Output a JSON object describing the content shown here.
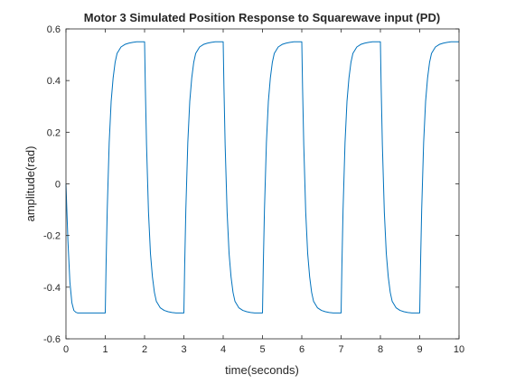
{
  "chart_data": {
    "type": "line",
    "title": "Motor 3 Simulated Position Response to Squarewave input (PD)",
    "xlabel": "time(seconds)",
    "ylabel": "amplitude(rad)",
    "xlim": [
      0,
      10
    ],
    "ylim": [
      -0.6,
      0.6
    ],
    "xticks": [
      0,
      1,
      2,
      3,
      4,
      5,
      6,
      7,
      8,
      9,
      10
    ],
    "yticks": [
      -0.6,
      -0.4,
      -0.2,
      0,
      0.2,
      0.4,
      0.6
    ],
    "ytick_labels": [
      "-0.6",
      "-0.4",
      "-0.2",
      "0",
      "0.2",
      "0.4",
      "0.6"
    ],
    "grid": false,
    "line_color": "#0072BD",
    "series": [
      {
        "values_note": "",
        "x": [
          0,
          0.02,
          0.05,
          0.1,
          0.15,
          0.2,
          0.25,
          0.3,
          0.4,
          0.5,
          0.7,
          1.0,
          1.0,
          1.02,
          1.05,
          1.1,
          1.15,
          1.2,
          1.25,
          1.3,
          1.4,
          1.5,
          1.6,
          1.7,
          1.8,
          1.9,
          2.0,
          2.0,
          2.02,
          2.05,
          2.1,
          2.15,
          2.2,
          2.25,
          2.3,
          2.4,
          2.5,
          2.6,
          2.7,
          2.8,
          2.9,
          3.0,
          3.0,
          3.02,
          3.05,
          3.1,
          3.15,
          3.2,
          3.25,
          3.3,
          3.4,
          3.5,
          3.6,
          3.7,
          3.8,
          3.9,
          4.0,
          4.0,
          4.02,
          4.05,
          4.1,
          4.15,
          4.2,
          4.25,
          4.3,
          4.4,
          4.5,
          4.6,
          4.7,
          4.8,
          4.9,
          5.0,
          5.0,
          5.02,
          5.05,
          5.1,
          5.15,
          5.2,
          5.25,
          5.3,
          5.4,
          5.5,
          5.6,
          5.7,
          5.8,
          5.9,
          6.0,
          6.0,
          6.02,
          6.05,
          6.1,
          6.15,
          6.2,
          6.25,
          6.3,
          6.4,
          6.5,
          6.6,
          6.7,
          6.8,
          6.9,
          7.0,
          7.0,
          7.02,
          7.05,
          7.1,
          7.15,
          7.2,
          7.25,
          7.3,
          7.4,
          7.5,
          7.6,
          7.7,
          7.8,
          7.9,
          8.0,
          8.0,
          8.02,
          8.05,
          8.1,
          8.15,
          8.2,
          8.25,
          8.3,
          8.4,
          8.5,
          8.6,
          8.7,
          8.8,
          8.9,
          9.0,
          9.0,
          9.02,
          9.05,
          9.1,
          9.15,
          9.2,
          9.25,
          9.3,
          9.4,
          9.5,
          9.6,
          9.7,
          9.8,
          9.9,
          10.0
        ],
        "y": [
          0,
          -0.09,
          -0.22,
          -0.38,
          -0.46,
          -0.49,
          -0.497,
          -0.5,
          -0.5,
          -0.5,
          -0.5,
          -0.5,
          -0.5,
          -0.32,
          -0.1,
          0.16,
          0.32,
          0.41,
          0.47,
          0.505,
          0.53,
          0.54,
          0.545,
          0.548,
          0.55,
          0.55,
          0.55,
          0.55,
          0.37,
          0.15,
          -0.11,
          -0.27,
          -0.36,
          -0.42,
          -0.455,
          -0.48,
          -0.49,
          -0.495,
          -0.498,
          -0.5,
          -0.5,
          -0.5,
          -0.5,
          -0.32,
          -0.1,
          0.16,
          0.32,
          0.41,
          0.47,
          0.505,
          0.53,
          0.54,
          0.545,
          0.548,
          0.55,
          0.55,
          0.55,
          0.55,
          0.37,
          0.15,
          -0.11,
          -0.27,
          -0.36,
          -0.42,
          -0.455,
          -0.48,
          -0.49,
          -0.495,
          -0.498,
          -0.5,
          -0.5,
          -0.5,
          -0.5,
          -0.32,
          -0.1,
          0.16,
          0.32,
          0.41,
          0.47,
          0.505,
          0.53,
          0.54,
          0.545,
          0.548,
          0.55,
          0.55,
          0.55,
          0.55,
          0.37,
          0.15,
          -0.11,
          -0.27,
          -0.36,
          -0.42,
          -0.455,
          -0.48,
          -0.49,
          -0.495,
          -0.498,
          -0.5,
          -0.5,
          -0.5,
          -0.5,
          -0.32,
          -0.1,
          0.16,
          0.32,
          0.41,
          0.47,
          0.505,
          0.53,
          0.54,
          0.545,
          0.548,
          0.55,
          0.55,
          0.55,
          0.55,
          0.37,
          0.15,
          -0.11,
          -0.27,
          -0.36,
          -0.42,
          -0.455,
          -0.48,
          -0.49,
          -0.495,
          -0.498,
          -0.5,
          -0.5,
          -0.5,
          -0.5,
          -0.32,
          -0.1,
          0.16,
          0.32,
          0.41,
          0.47,
          0.505,
          0.53,
          0.54,
          0.545,
          0.548,
          0.55,
          0.55,
          0.55
        ]
      }
    ]
  }
}
